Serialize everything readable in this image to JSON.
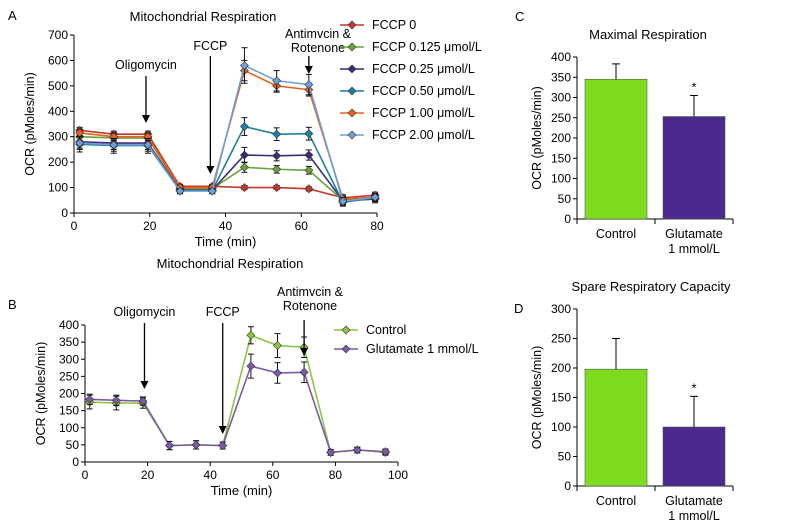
{
  "chart_data": [
    {
      "panel_label": "A",
      "type": "line",
      "title": "Mitochondrial Respiration",
      "xlabel": "Time (min)",
      "ylabel": "OCR (pMoles/min)",
      "xlim": [
        0,
        80
      ],
      "ylim": [
        0,
        700
      ],
      "xticks": [
        0,
        20,
        40,
        60,
        80
      ],
      "yticks": [
        0,
        100,
        200,
        300,
        400,
        500,
        600,
        700
      ],
      "legend_position": "right",
      "annotations": [
        {
          "text": "Oligomycin",
          "x": 19
        },
        {
          "text": "FCCP",
          "x": 36
        },
        {
          "text": "Antimvcin &\nRotenone",
          "x": 62
        }
      ],
      "x": [
        1.5,
        10.5,
        19.5,
        28,
        36.5,
        45,
        53.5,
        62,
        71,
        79.5
      ],
      "series": [
        {
          "name": "FCCP 0",
          "color": "#c0392b",
          "marker": "diamond",
          "values": [
            325,
            310,
            310,
            105,
            105,
            100,
            100,
            95,
            60,
            70
          ],
          "errors": [
            12,
            12,
            12,
            8,
            8,
            8,
            8,
            8,
            12,
            12
          ]
        },
        {
          "name": "FCCP 0.125 μmol/L",
          "color": "#6aa33a",
          "marker": "diamond",
          "values": [
            300,
            295,
            295,
            95,
            95,
            180,
            172,
            168,
            50,
            60
          ],
          "errors": [
            20,
            20,
            20,
            10,
            10,
            20,
            15,
            15,
            15,
            15
          ]
        },
        {
          "name": "FCCP 0.25 μmol/L",
          "color": "#3d2a78",
          "marker": "diamond",
          "values": [
            280,
            275,
            275,
            90,
            90,
            228,
            225,
            228,
            48,
            55
          ],
          "errors": [
            25,
            25,
            25,
            10,
            10,
            30,
            20,
            20,
            15,
            15
          ]
        },
        {
          "name": "FCCP 0.50 μmol/L",
          "color": "#1f7fa0",
          "marker": "diamond",
          "values": [
            270,
            265,
            265,
            88,
            88,
            340,
            310,
            312,
            42,
            60
          ],
          "errors": [
            30,
            30,
            30,
            12,
            12,
            35,
            25,
            25,
            15,
            15
          ]
        },
        {
          "name": "FCCP 1.00 μmol/L",
          "color": "#e8601c",
          "marker": "diamond",
          "values": [
            315,
            300,
            300,
            100,
            100,
            560,
            500,
            485,
            55,
            62
          ],
          "errors": [
            15,
            15,
            15,
            10,
            10,
            40,
            25,
            25,
            12,
            12
          ]
        },
        {
          "name": "FCCP 2.00 μmol/L",
          "color": "#6d9fd8",
          "marker": "diamond",
          "values": [
            275,
            268,
            268,
            86,
            86,
            580,
            520,
            505,
            46,
            62
          ],
          "errors": [
            25,
            25,
            25,
            10,
            10,
            70,
            40,
            40,
            15,
            15
          ]
        }
      ]
    },
    {
      "panel_label": "B",
      "type": "line",
      "title": "Mitochondrial Respiration",
      "xlabel": "Time (min)",
      "ylabel": "OCR (pMoles/min)",
      "xlim": [
        0,
        100
      ],
      "ylim": [
        0,
        400
      ],
      "xticks": [
        0,
        20,
        40,
        60,
        80,
        100
      ],
      "yticks": [
        0,
        50,
        100,
        150,
        200,
        250,
        300,
        350,
        400
      ],
      "legend_position": "right",
      "annotations": [
        {
          "text": "Oligomycin",
          "x": 19
        },
        {
          "text": "FCCP",
          "x": 44
        },
        {
          "text": "Antimvcin &\nRotenone",
          "x": 70
        }
      ],
      "x": [
        1.5,
        10,
        18.5,
        27,
        35.5,
        44,
        53,
        61.5,
        70,
        78.5,
        87,
        96
      ],
      "series": [
        {
          "name": "Control",
          "color": "#8dc63f",
          "marker": "diamond",
          "values": [
            175,
            172,
            172,
            48,
            50,
            48,
            370,
            340,
            335,
            28,
            35,
            28
          ],
          "errors": [
            20,
            20,
            15,
            12,
            12,
            10,
            25,
            35,
            30,
            8,
            8,
            8
          ]
        },
        {
          "name": "Glutamate 1 mmol/L",
          "color": "#7b5aa6",
          "marker": "diamond",
          "values": [
            183,
            180,
            178,
            48,
            50,
            48,
            280,
            260,
            262,
            28,
            35,
            30
          ],
          "errors": [
            15,
            15,
            12,
            12,
            12,
            10,
            35,
            30,
            30,
            8,
            8,
            8
          ]
        }
      ]
    },
    {
      "panel_label": "C",
      "type": "bar",
      "title": "Maximal Respiration",
      "xlabel": "",
      "ylabel": "OCR (pMoles/min)",
      "ylim": [
        0,
        400
      ],
      "yticks": [
        0,
        50,
        100,
        150,
        200,
        250,
        300,
        350,
        400
      ],
      "categories": [
        "Control",
        "Glutamate\n1 mmol/L"
      ],
      "values": [
        345,
        253
      ],
      "errors": [
        38,
        52
      ],
      "colors": [
        "#7ddc1f",
        "#4a2a8c"
      ],
      "significance": [
        "",
        "*"
      ]
    },
    {
      "panel_label": "D",
      "type": "bar",
      "title": "Spare Respiratory Capacity",
      "xlabel": "",
      "ylabel": "OCR (pMoles/min)",
      "ylim": [
        0,
        300
      ],
      "yticks": [
        0,
        50,
        100,
        150,
        200,
        250,
        300
      ],
      "categories": [
        "Control",
        "Glutamate\n1 mmol/L"
      ],
      "values": [
        198,
        100
      ],
      "errors": [
        52,
        52
      ],
      "colors": [
        "#7ddc1f",
        "#4a2a8c"
      ],
      "significance": [
        "",
        "*"
      ]
    }
  ]
}
